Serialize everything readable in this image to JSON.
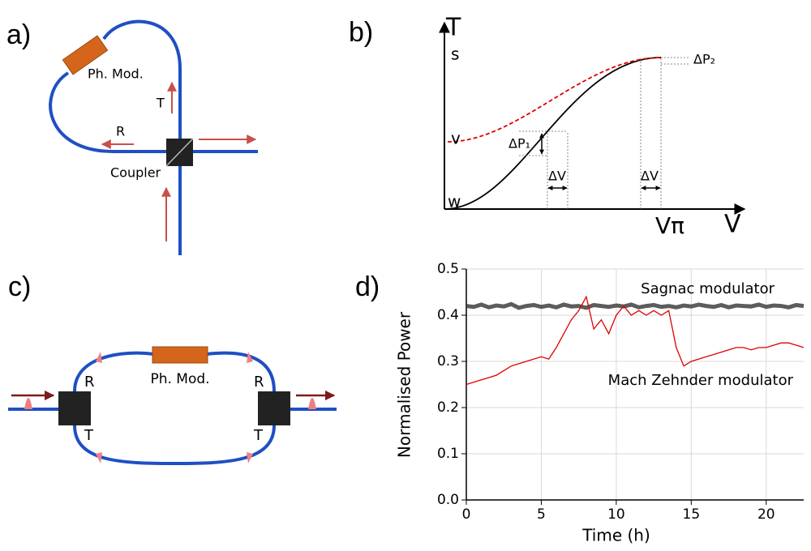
{
  "panels": {
    "a": {
      "label": "a)",
      "modulator": "Ph. Mod.",
      "transmitted": "T",
      "reflected": "R",
      "coupler": "Coupler"
    },
    "b": {
      "label": "b)",
      "y_axis": "T",
      "x_axis": "V",
      "level_s": "s",
      "level_v": "v",
      "level_w": "w",
      "v_pi": "Vπ",
      "delta_p2": "ΔP₂",
      "delta_p1": "ΔP₁",
      "delta_v_1": "ΔV",
      "delta_v_2": "ΔV"
    },
    "c": {
      "label": "c)",
      "modulator": "Ph. Mod.",
      "left_r": "R",
      "left_t": "T",
      "right_r": "R",
      "right_t": "T"
    },
    "d": {
      "label": "d)"
    }
  },
  "chart_data": {
    "type": "line",
    "xlabel": "Time (h)",
    "ylabel": "Normalised Power",
    "x": [
      0,
      0.5,
      1,
      1.5,
      2,
      2.5,
      3,
      3.5,
      4,
      4.5,
      5,
      5.5,
      6,
      6.5,
      7,
      7.5,
      8,
      8.5,
      9,
      9.5,
      10,
      10.5,
      11,
      11.5,
      12,
      12.5,
      13,
      13.5,
      14,
      14.5,
      15,
      15.5,
      16,
      16.5,
      17,
      17.5,
      18,
      18.5,
      19,
      19.5,
      20,
      20.5,
      21,
      21.5,
      22,
      22.5
    ],
    "series": [
      {
        "name": "Sagnac modulator",
        "color": "#333333",
        "values": [
          0.42,
          0.418,
          0.423,
          0.417,
          0.421,
          0.419,
          0.424,
          0.416,
          0.42,
          0.422,
          0.418,
          0.421,
          0.417,
          0.423,
          0.419,
          0.42,
          0.416,
          0.422,
          0.42,
          0.418,
          0.421,
          0.419,
          0.423,
          0.417,
          0.42,
          0.422,
          0.418,
          0.42,
          0.417,
          0.421,
          0.419,
          0.423,
          0.42,
          0.418,
          0.422,
          0.417,
          0.421,
          0.42,
          0.419,
          0.423,
          0.418,
          0.421,
          0.42,
          0.417,
          0.422,
          0.42
        ]
      },
      {
        "name": "Mach Zehnder modulator",
        "color": "#e00000",
        "values": [
          0.25,
          0.255,
          0.26,
          0.265,
          0.27,
          0.28,
          0.29,
          0.295,
          0.3,
          0.305,
          0.31,
          0.305,
          0.33,
          0.36,
          0.39,
          0.41,
          0.44,
          0.37,
          0.39,
          0.36,
          0.4,
          0.42,
          0.4,
          0.41,
          0.4,
          0.41,
          0.4,
          0.41,
          0.33,
          0.29,
          0.3,
          0.305,
          0.31,
          0.315,
          0.32,
          0.325,
          0.33,
          0.33,
          0.325,
          0.33,
          0.33,
          0.335,
          0.34,
          0.34,
          0.335,
          0.33
        ]
      }
    ],
    "xlim": [
      0,
      22.5
    ],
    "ylim": [
      0,
      0.5
    ],
    "xticks": [
      0,
      5,
      10,
      15,
      20
    ],
    "yticks": [
      {
        "value": 0,
        "label": "0.0"
      },
      0.1,
      0.2,
      0.3,
      0.4,
      0.5
    ],
    "grid": true
  }
}
